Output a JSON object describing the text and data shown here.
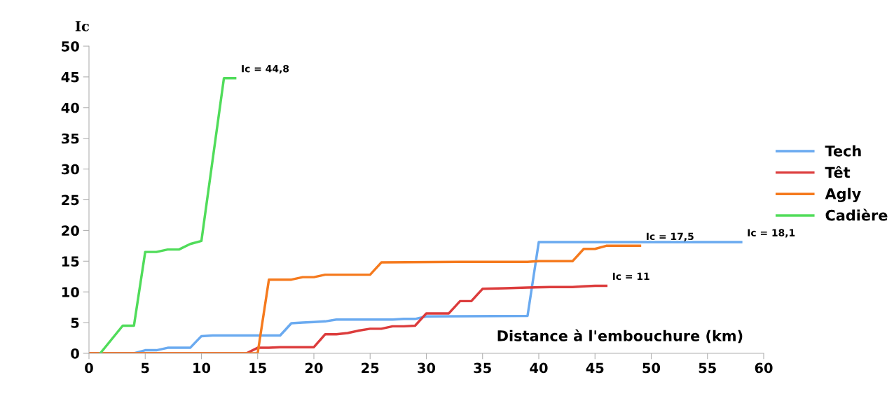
{
  "chart_data": {
    "type": "line",
    "xlabel": "Distance à l'embouchure (km)",
    "ylabel": "Ic",
    "xlim": [
      0,
      60
    ],
    "xticks": [
      0,
      5,
      10,
      15,
      20,
      25,
      30,
      35,
      40,
      45,
      50,
      55,
      60
    ],
    "ylim": [
      0,
      50
    ],
    "yticks": [
      0,
      5,
      10,
      15,
      20,
      25,
      30,
      35,
      40,
      45,
      50
    ],
    "grid": false,
    "legend": "right",
    "marker": "none",
    "line_style": "solid",
    "series": [
      {
        "name": "Tech",
        "color": "#6aaaf0",
        "x": [
          0,
          4,
          5,
          6,
          7,
          9,
          10,
          11,
          17,
          18,
          19,
          20,
          21,
          22,
          27,
          28,
          29,
          30,
          39,
          40,
          58
        ],
        "values": [
          0,
          0,
          0.5,
          0.5,
          0.9,
          0.9,
          2.8,
          2.9,
          2.9,
          4.9,
          5.0,
          5.1,
          5.2,
          5.5,
          5.5,
          5.6,
          5.6,
          6.0,
          6.1,
          18.1,
          18.1
        ]
      },
      {
        "name": "Têt",
        "color": "#dc3c3c",
        "x": [
          0,
          14,
          15,
          16,
          17,
          20,
          21,
          22,
          23,
          24,
          25,
          26,
          27,
          28,
          29,
          30,
          32,
          33,
          34,
          35,
          37,
          39,
          41,
          43,
          44,
          45,
          46
        ],
        "values": [
          0,
          0,
          0.9,
          0.9,
          1.0,
          1.0,
          3.1,
          3.1,
          3.3,
          3.7,
          4.0,
          4.0,
          4.4,
          4.4,
          4.5,
          6.5,
          6.5,
          8.5,
          8.5,
          10.5,
          10.6,
          10.7,
          10.8,
          10.8,
          10.9,
          11.0,
          11
        ]
      },
      {
        "name": "Agly",
        "color": "#f57a1e",
        "x": [
          0,
          15,
          16,
          18,
          19,
          20,
          21,
          25,
          26,
          33,
          39,
          40,
          43,
          44,
          45,
          46,
          49
        ],
        "values": [
          0,
          0,
          12,
          12,
          12.4,
          12.4,
          12.8,
          12.8,
          14.8,
          14.9,
          14.9,
          15.0,
          15.0,
          17.0,
          17.0,
          17.5,
          17.5
        ]
      },
      {
        "name": "Cadière",
        "color": "#50dc5a",
        "x": [
          1,
          3,
          4,
          5,
          6,
          7,
          8,
          9,
          10,
          12,
          13
        ],
        "values": [
          0,
          4.5,
          4.5,
          16.5,
          16.5,
          16.9,
          16.9,
          17.8,
          18.3,
          44.8,
          44.8
        ]
      }
    ],
    "annotations": [
      {
        "text": "Ic = 44,8",
        "x": 13,
        "y": 44.8
      },
      {
        "text": "Ic = 18,1",
        "x": 58,
        "y": 18.1
      },
      {
        "text": "Ic = 17,5",
        "x": 49,
        "y": 17.5
      },
      {
        "text": "Ic = 11",
        "x": 46,
        "y": 11
      }
    ]
  }
}
